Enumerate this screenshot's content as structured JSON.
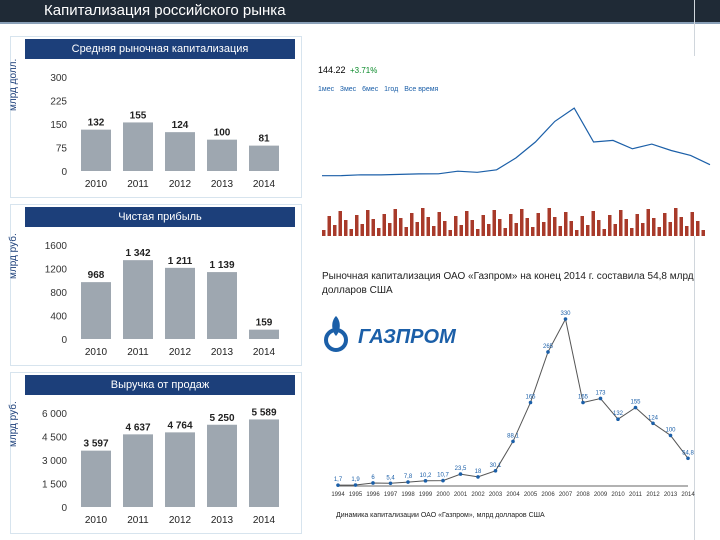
{
  "slide": {
    "title": "Капитализация российского рынка"
  },
  "colors": {
    "header_bg": "#1c3f7a",
    "bar": "#9ea7b0",
    "bar_dark": "#7f8891",
    "accent_blue": "#1b5fa8",
    "dark_bar": "#1f2a36"
  },
  "charts_left": [
    {
      "title": "Средняя рыночная капитализация",
      "yunit": "млрд долл.",
      "type": "bar",
      "categories": [
        "2010",
        "2011",
        "2012",
        "2013",
        "2014"
      ],
      "values": [
        132,
        155,
        124,
        100,
        81
      ],
      "value_labels": [
        "132",
        "155",
        "124",
        "100",
        "81"
      ],
      "ylim": [
        0,
        300
      ],
      "yticks": [
        "300",
        "225",
        "150",
        "75",
        "0"
      ]
    },
    {
      "title": "Чистая прибыль",
      "yunit": "млрд руб.",
      "type": "bar",
      "categories": [
        "2010",
        "2011",
        "2012",
        "2013",
        "2014"
      ],
      "values": [
        968,
        1342,
        1211,
        1139,
        159
      ],
      "value_labels": [
        "968",
        "1 342",
        "1 211",
        "1 139",
        "159"
      ],
      "ylim": [
        0,
        1600
      ],
      "yticks": [
        "1600",
        "1200",
        "800",
        "400",
        "0"
      ]
    },
    {
      "title": "Выручка от продаж",
      "yunit": "млрд руб.",
      "type": "bar",
      "categories": [
        "2010",
        "2011",
        "2012",
        "2013",
        "2014"
      ],
      "values": [
        3597,
        4637,
        4764,
        5250,
        5589
      ],
      "value_labels": [
        "3 597",
        "4 637",
        "4 764",
        "5 250",
        "5 589"
      ],
      "ylim": [
        0,
        6000
      ],
      "yticks": [
        "6 000",
        "4 500",
        "3 000",
        "1 500",
        "0"
      ]
    }
  ],
  "stock": {
    "price": "144.22",
    "change": "+3.71%",
    "tabs": [
      "1мес",
      "3мес",
      "6мес",
      "1год",
      "Все время"
    ]
  },
  "right_caption": "Рыночная капитализация ОАО «Газпром» на конец 2014 г. составила 54,8 млрд долларов США",
  "logo_text": "ГАЗПРОМ",
  "history_chart": {
    "type": "line",
    "title": "Динамика капитализации ОАО «Газпром», млрд долларов США",
    "x": [
      "1994",
      "1995",
      "1996",
      "1997",
      "1998",
      "1999",
      "2000",
      "2001",
      "2002",
      "2003",
      "2004",
      "2005",
      "2006",
      "2007",
      "2008",
      "2009",
      "2010",
      "2011",
      "2012",
      "2013",
      "2014"
    ],
    "values": [
      1.7,
      1.9,
      6.0,
      5.4,
      7.8,
      10.2,
      10.7,
      23.5,
      18.0,
      30.1,
      88.1,
      165.0,
      265.0,
      330.0,
      165.0,
      173.0,
      132.0,
      155.0,
      124.0,
      100.0,
      54.8
    ]
  }
}
